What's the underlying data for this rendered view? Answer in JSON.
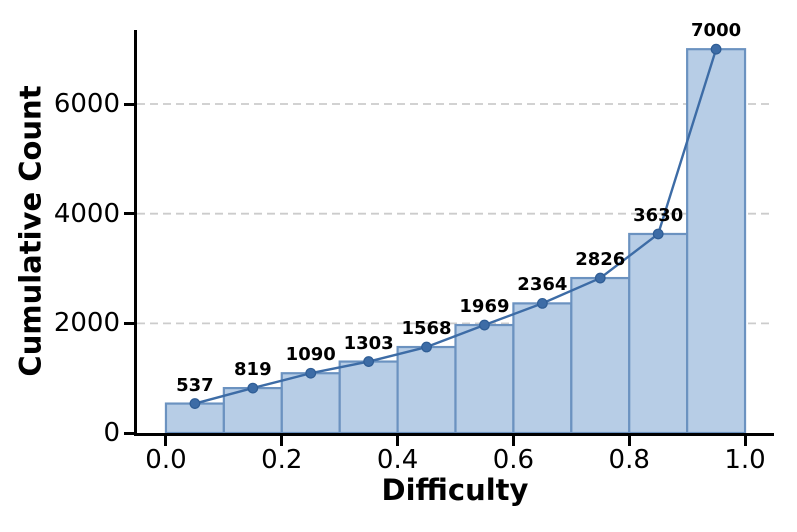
{
  "chart_data": {
    "type": "bar",
    "subtype": "cumulative-histogram-with-line-markers",
    "title": "",
    "xlabel": "Difficulty",
    "ylabel": "Cumulative Count",
    "bin_edges": [
      0.0,
      0.1,
      0.2,
      0.3,
      0.4,
      0.5,
      0.6,
      0.7,
      0.8,
      0.9,
      1.0
    ],
    "bin_centers": [
      0.05,
      0.15,
      0.25,
      0.35,
      0.45,
      0.55,
      0.65,
      0.75,
      0.85,
      0.95
    ],
    "values": [
      537,
      819,
      1090,
      1303,
      1568,
      1969,
      2364,
      2826,
      3630,
      7000
    ],
    "value_labels": [
      "537",
      "819",
      "1090",
      "1303",
      "1568",
      "1969",
      "2364",
      "2826",
      "3630",
      "7000"
    ],
    "x_ticks": [
      {
        "value": 0.0,
        "label": "0.0"
      },
      {
        "value": 0.2,
        "label": "0.2"
      },
      {
        "value": 0.4,
        "label": "0.4"
      },
      {
        "value": 0.6,
        "label": "0.6"
      },
      {
        "value": 0.8,
        "label": "0.8"
      },
      {
        "value": 1.0,
        "label": "1.0"
      }
    ],
    "y_ticks": [
      {
        "value": 0,
        "label": "0"
      },
      {
        "value": 2000,
        "label": "2000"
      },
      {
        "value": 4000,
        "label": "4000"
      },
      {
        "value": 6000,
        "label": "6000"
      }
    ],
    "xlim": [
      -0.05,
      1.05
    ],
    "ylim": [
      0,
      7350
    ],
    "grid": "horizontal dashed lines at 2000, 4000, 6000 behind bars",
    "legend": "none",
    "colors": {
      "bar_fill": "#b7cde6",
      "bar_edge": "#6b92c0",
      "line": "#3d6ca6",
      "marker_fill": "#3d6ca6",
      "marker_edge": "#2f5d95",
      "grid": "#cccccc",
      "axis": "#000000",
      "text": "#000000",
      "background": "#ffffff"
    }
  }
}
